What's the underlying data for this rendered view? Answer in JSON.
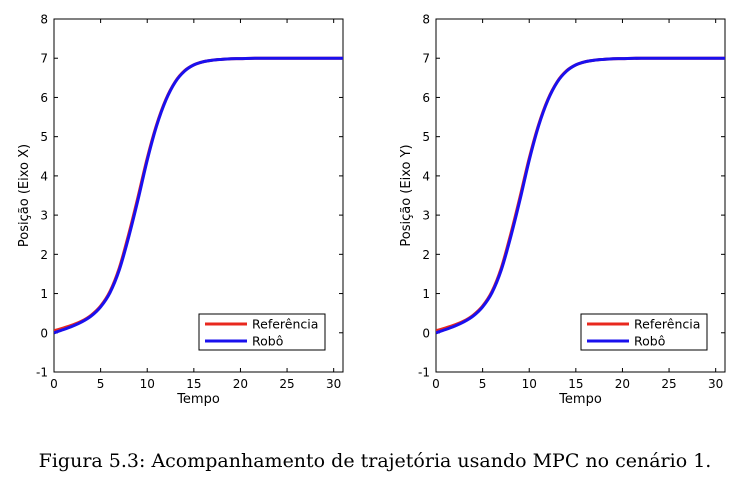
{
  "caption": "Figura 5.3: Acompanhamento de trajetória usando MPC no cenário 1.",
  "colors": {
    "referencia": "#e8281e",
    "robo": "#1a10ee"
  },
  "chart_data": [
    {
      "type": "line",
      "xlabel": "Tempo",
      "ylabel": "Posição (Eixo X)",
      "xlim": [
        0,
        31
      ],
      "ylim": [
        -1,
        8
      ],
      "xticks": [
        "0",
        "5",
        "10",
        "15",
        "20",
        "25",
        "30"
      ],
      "yticks": [
        "-1",
        "0",
        "1",
        "2",
        "3",
        "4",
        "5",
        "6",
        "7",
        "8"
      ],
      "legend_position": "lower-right",
      "x": [
        0,
        1,
        2,
        3,
        4,
        5,
        6,
        7,
        8,
        9,
        10,
        11,
        12,
        13,
        14,
        15,
        16,
        17,
        18,
        19,
        20,
        22,
        25,
        28,
        31
      ],
      "series": [
        {
          "name": "Referência",
          "values": [
            0.05,
            0.12,
            0.2,
            0.3,
            0.45,
            0.68,
            1.05,
            1.65,
            2.5,
            3.45,
            4.45,
            5.3,
            5.95,
            6.4,
            6.68,
            6.83,
            6.91,
            6.95,
            6.97,
            6.985,
            6.99,
            7.0,
            7.0,
            7.0,
            7.0
          ]
        },
        {
          "name": "Robô",
          "values": [
            0.0,
            0.08,
            0.17,
            0.28,
            0.43,
            0.66,
            1.02,
            1.6,
            2.43,
            3.38,
            4.4,
            5.27,
            5.93,
            6.39,
            6.67,
            6.83,
            6.91,
            6.95,
            6.97,
            6.985,
            6.99,
            7.0,
            7.0,
            7.0,
            7.0
          ]
        }
      ]
    },
    {
      "type": "line",
      "xlabel": "Tempo",
      "ylabel": "Posição (Eixo Y)",
      "xlim": [
        0,
        31
      ],
      "ylim": [
        -1,
        8
      ],
      "xticks": [
        "0",
        "5",
        "10",
        "15",
        "20",
        "25",
        "30"
      ],
      "yticks": [
        "-1",
        "0",
        "1",
        "2",
        "3",
        "4",
        "5",
        "6",
        "7",
        "8"
      ],
      "legend_position": "lower-right",
      "x": [
        0,
        1,
        2,
        3,
        4,
        5,
        6,
        7,
        8,
        9,
        10,
        11,
        12,
        13,
        14,
        15,
        16,
        17,
        18,
        19,
        20,
        22,
        25,
        28,
        31
      ],
      "series": [
        {
          "name": "Referência",
          "values": [
            0.05,
            0.12,
            0.2,
            0.3,
            0.45,
            0.68,
            1.05,
            1.65,
            2.5,
            3.45,
            4.45,
            5.3,
            5.95,
            6.4,
            6.68,
            6.83,
            6.91,
            6.95,
            6.97,
            6.985,
            6.99,
            7.0,
            7.0,
            7.0,
            7.0
          ]
        },
        {
          "name": "Robô",
          "values": [
            0.0,
            0.08,
            0.17,
            0.28,
            0.43,
            0.66,
            1.02,
            1.6,
            2.43,
            3.38,
            4.4,
            5.27,
            5.93,
            6.39,
            6.67,
            6.83,
            6.91,
            6.95,
            6.97,
            6.985,
            6.99,
            7.0,
            7.0,
            7.0,
            7.0
          ]
        }
      ]
    }
  ]
}
